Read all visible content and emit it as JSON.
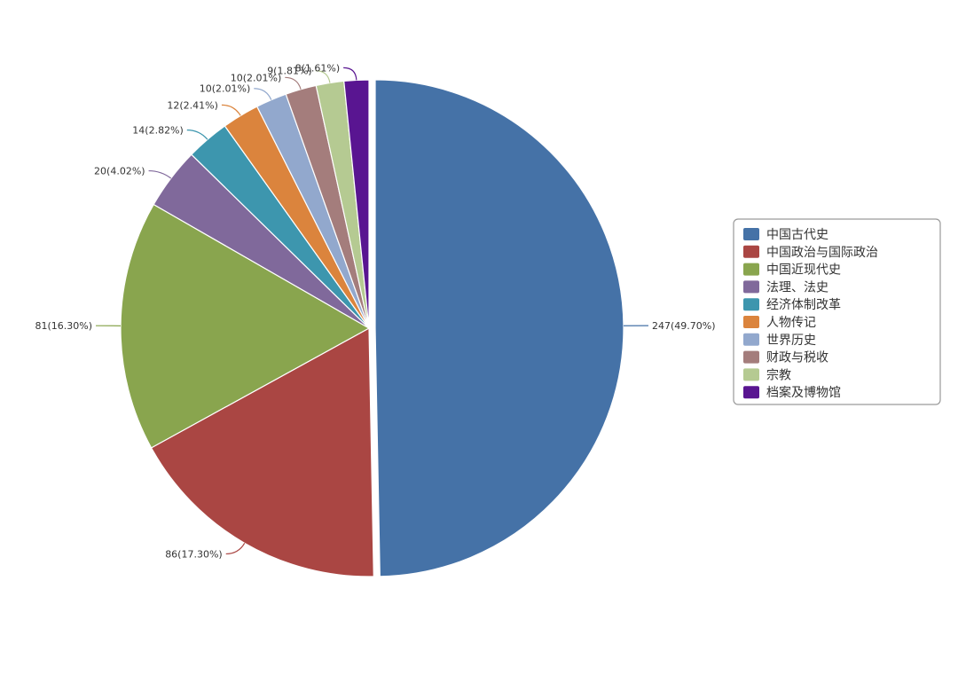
{
  "chart_data": {
    "type": "pie",
    "title": "",
    "legend_position": "right",
    "slices": [
      {
        "name": "中国古代史",
        "value": 247,
        "label": "247(49.70%)",
        "color": "#4572a7",
        "exploded": true
      },
      {
        "name": "中国政治与国际政治",
        "value": 86,
        "label": "86(17.30%)",
        "color": "#aa4643",
        "exploded": false
      },
      {
        "name": "中国近现代史",
        "value": 81,
        "label": "81(16.30%)",
        "color": "#89a54e",
        "exploded": false
      },
      {
        "name": "法理、法史",
        "value": 20,
        "label": "20(4.02%)",
        "color": "#80699b",
        "exploded": false
      },
      {
        "name": "经济体制改革",
        "value": 14,
        "label": "14(2.82%)",
        "color": "#3d96ae",
        "exploded": false
      },
      {
        "name": "人物传记",
        "value": 12,
        "label": "12(2.41%)",
        "color": "#db843d",
        "exploded": false
      },
      {
        "name": "世界历史",
        "value": 10,
        "label": "10(2.01%)",
        "color": "#92a8cd",
        "exploded": false
      },
      {
        "name": "财政与税收",
        "value": 10,
        "label": "10(2.01%)",
        "color": "#a47d7c",
        "exploded": false
      },
      {
        "name": "宗教",
        "value": 9,
        "label": "9(1.81%)",
        "color": "#b5ca92",
        "exploded": false
      },
      {
        "name": "档案及博物馆",
        "value": 8,
        "label": "8(1.61%)",
        "color": "#591591",
        "exploded": false
      }
    ]
  }
}
